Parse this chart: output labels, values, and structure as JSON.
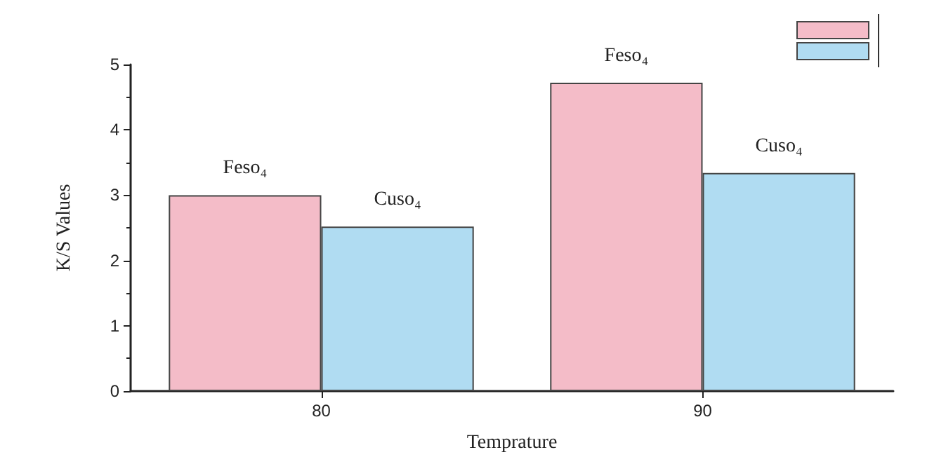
{
  "chart_data": {
    "type": "bar",
    "xlabel": "Temprature",
    "ylabel": "K/S Values",
    "categories": [
      "80",
      "90"
    ],
    "series": [
      {
        "name": "Feso₄",
        "color": "#f4bcc8",
        "values": [
          3.0,
          4.72
        ]
      },
      {
        "name": "Cuso₄",
        "color": "#b0dcf2",
        "values": [
          2.52,
          3.34
        ]
      }
    ],
    "ylim": [
      0,
      5
    ],
    "yticks": [
      0,
      1,
      2,
      3,
      4,
      5
    ],
    "grid": false
  }
}
